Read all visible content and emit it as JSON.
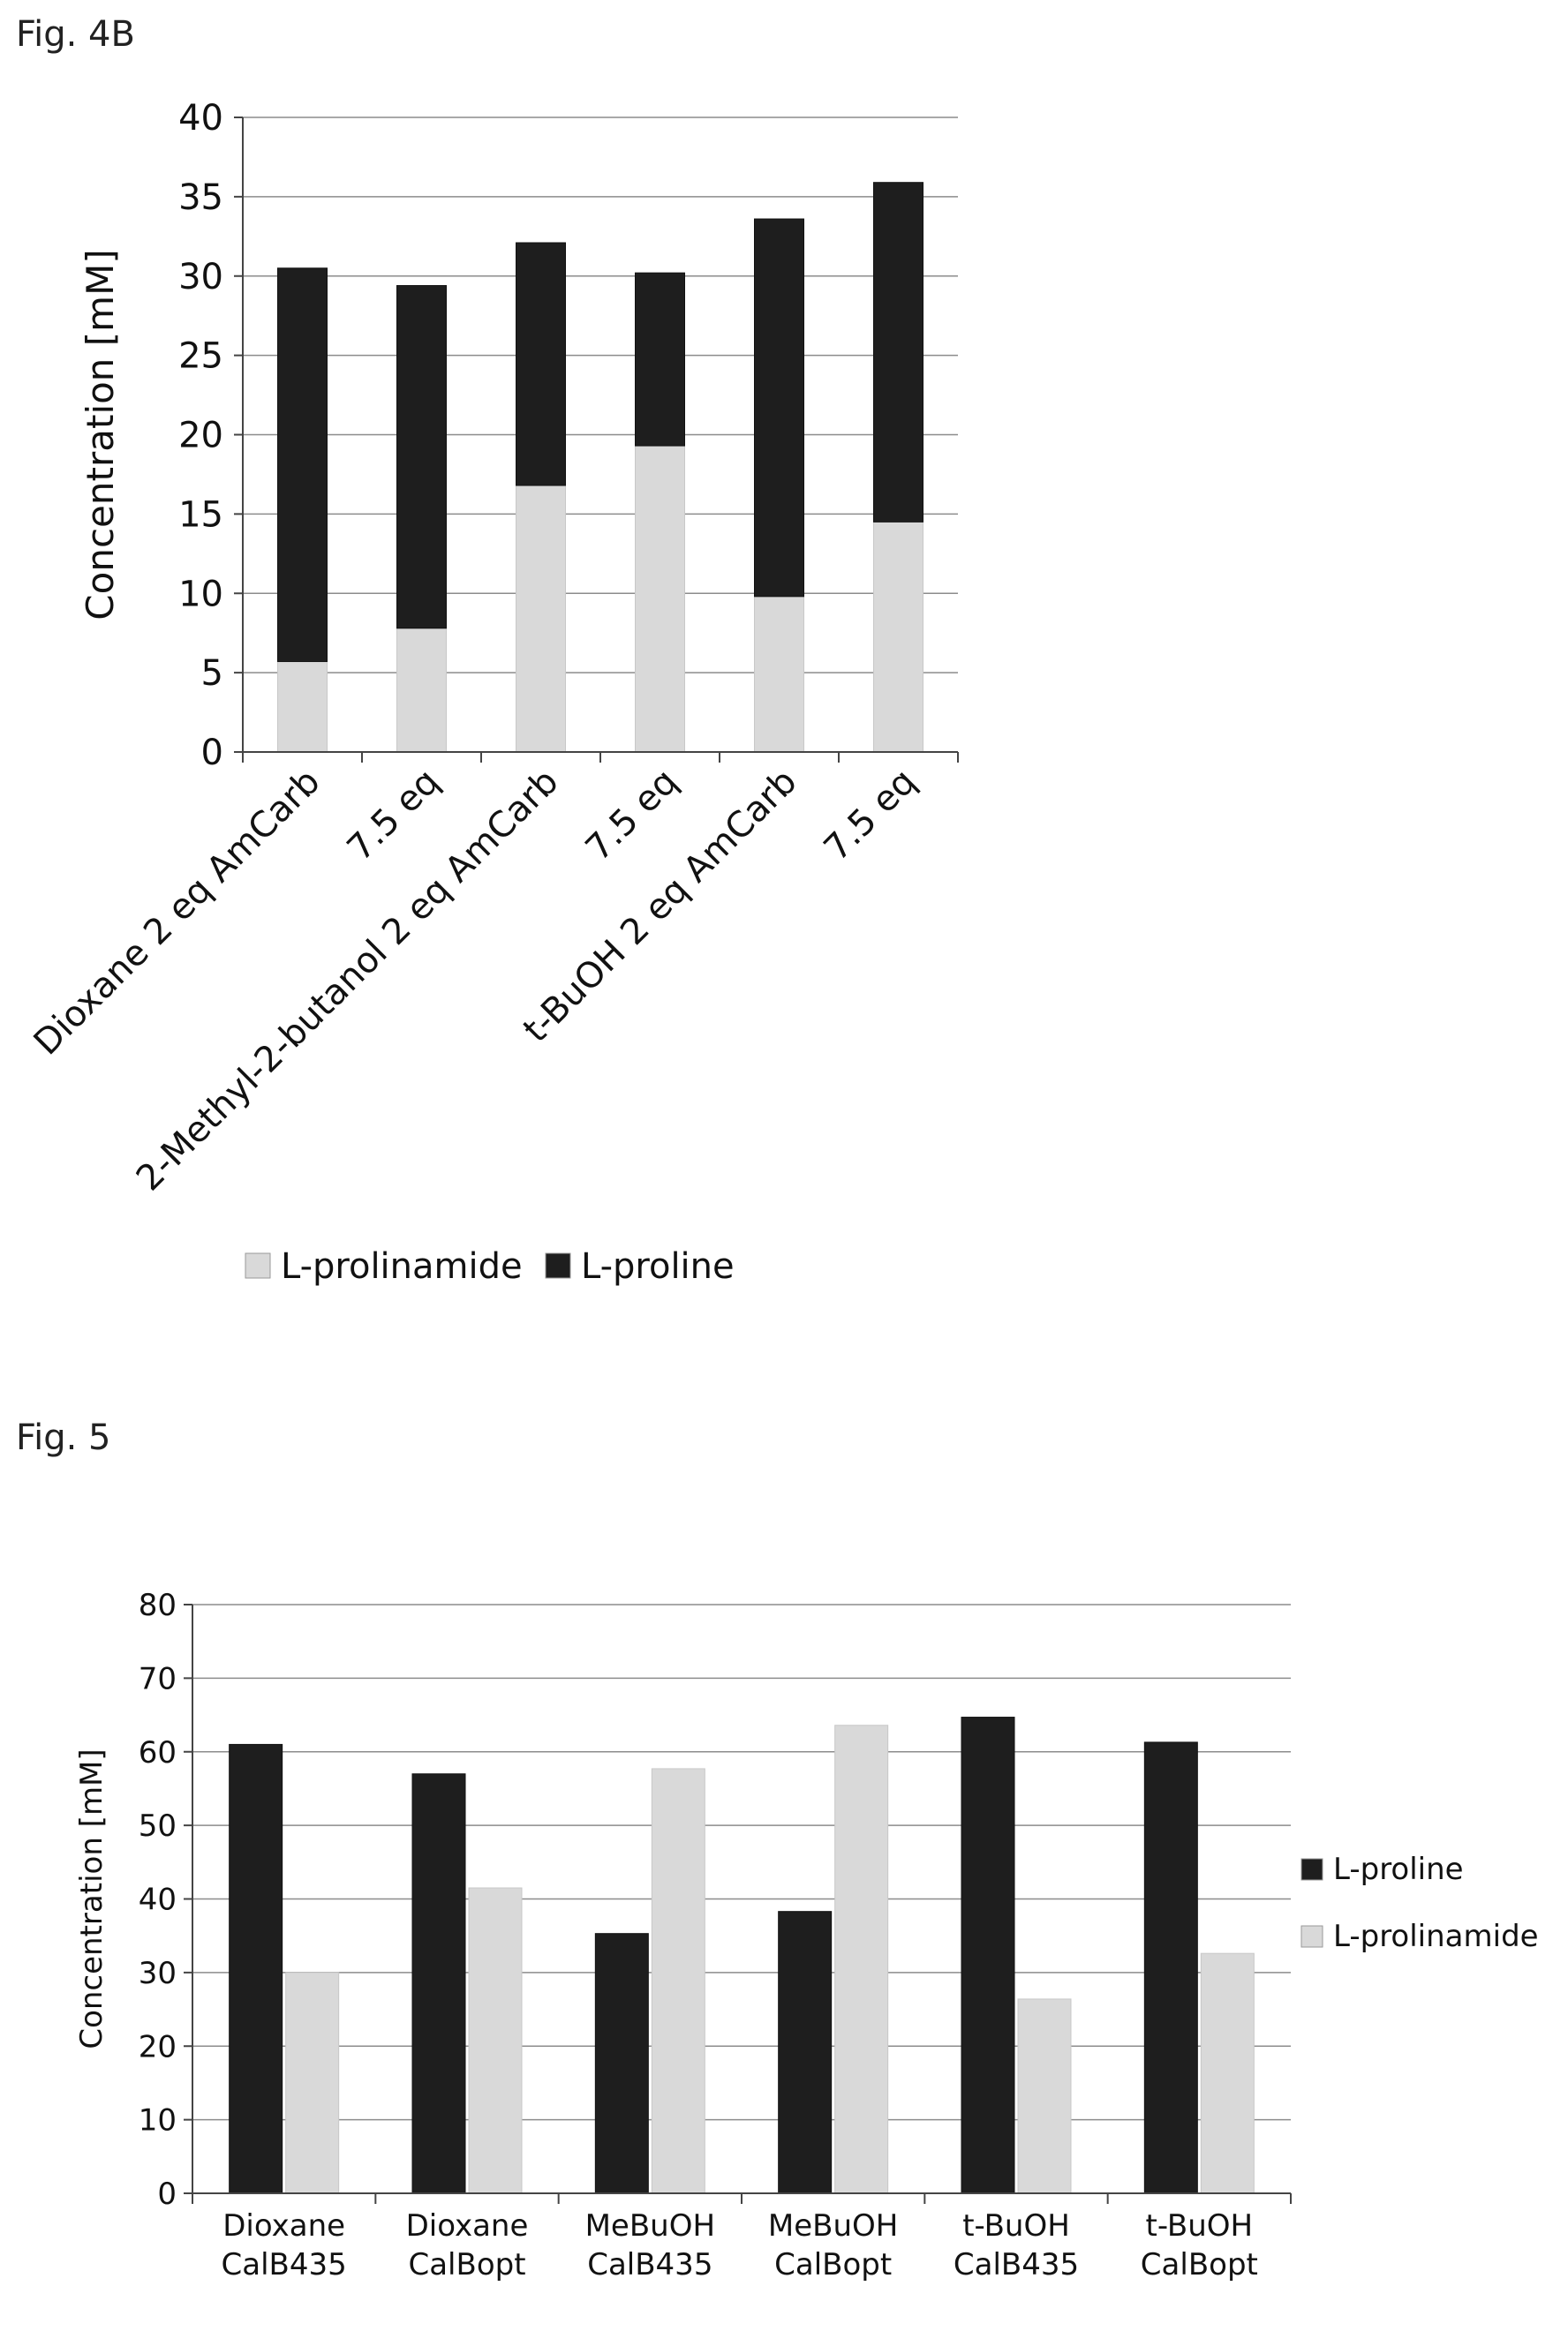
{
  "figures": [
    {
      "label": "Fig. 4B",
      "legend_labels": [
        "L-prolinamide",
        "L-proline"
      ]
    },
    {
      "label": "Fig. 5",
      "legend_labels": [
        "L-proline",
        "L-prolinamide"
      ]
    }
  ],
  "colors": {
    "l_proline": "#1e1e1e",
    "l_prolinamide": "#d9d9d9",
    "gridline": "#8c8c8c",
    "axis": "#444444"
  },
  "chart_data": [
    {
      "type": "bar",
      "stacked": true,
      "ylabel": "Concentration [mM]",
      "xlabel": "",
      "ylim": [
        0,
        40
      ],
      "yticks": [
        0,
        5,
        10,
        15,
        20,
        25,
        30,
        35,
        40
      ],
      "grid": true,
      "legend_position": "bottom",
      "tick_label_rotation": -45,
      "categories": [
        "Dioxane 2 eq AmCarb",
        "7.5 eq",
        "2-Methyl-2-butanol 2 eq AmCarb",
        "7.5 eq",
        "t-BuOH 2 eq AmCarb",
        "7.5 eq"
      ],
      "series": [
        {
          "name": "L-prolinamide",
          "color": "#d9d9d9",
          "values": [
            5.7,
            7.8,
            16.8,
            19.3,
            9.8,
            14.5
          ]
        },
        {
          "name": "L-proline",
          "color": "#1e1e1e",
          "values": [
            24.8,
            21.6,
            15.3,
            10.9,
            23.8,
            21.4
          ]
        }
      ]
    },
    {
      "type": "bar",
      "stacked": false,
      "ylabel": "Concentration [mM]",
      "xlabel": "",
      "ylim": [
        0,
        80
      ],
      "yticks": [
        0,
        10,
        20,
        30,
        40,
        50,
        60,
        70,
        80
      ],
      "grid": true,
      "legend_position": "right",
      "categories": [
        [
          "Dioxane",
          "CalB435"
        ],
        [
          "Dioxane",
          "CalBopt"
        ],
        [
          "MeBuOH",
          "CalB435"
        ],
        [
          "MeBuOH",
          "CalBopt"
        ],
        [
          "t-BuOH",
          "CalB435"
        ],
        [
          "t-BuOH",
          "CalBopt"
        ]
      ],
      "series": [
        {
          "name": "L-proline",
          "color": "#1e1e1e",
          "values": [
            61,
            57,
            35.3,
            38.3,
            64.7,
            61.3
          ]
        },
        {
          "name": "L-prolinamide",
          "color": "#d9d9d9",
          "values": [
            30,
            41.5,
            57.7,
            63.6,
            26.4,
            32.6
          ]
        }
      ]
    }
  ]
}
